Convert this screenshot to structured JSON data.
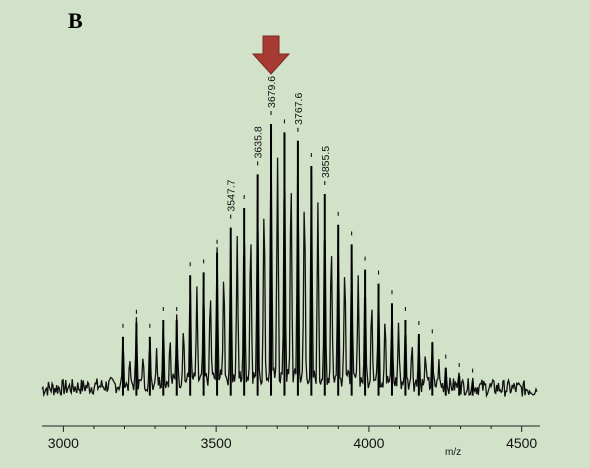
{
  "panel": {
    "letter": "B"
  },
  "chart_data": {
    "type": "line",
    "title": "",
    "xlabel": "m/z",
    "ylabel": "",
    "xlim": [
      2930,
      4560
    ],
    "ylim": [
      0,
      1.0
    ],
    "x_ticks": [
      3000,
      3500,
      4000,
      4500
    ],
    "grid": false,
    "highlight_arrow": {
      "at_x": 3679.6,
      "color": "#a73a33"
    },
    "peak_labels": [
      "3547.7",
      "3635.8",
      "3679.6",
      "3767.6",
      "3855.5"
    ],
    "peaks": [
      {
        "x": 3195,
        "y": 0.24
      },
      {
        "x": 3239,
        "y": 0.29
      },
      {
        "x": 3283,
        "y": 0.24
      },
      {
        "x": 3327,
        "y": 0.3
      },
      {
        "x": 3371,
        "y": 0.3
      },
      {
        "x": 3415,
        "y": 0.46
      },
      {
        "x": 3459,
        "y": 0.47
      },
      {
        "x": 3503,
        "y": 0.54
      },
      {
        "x": 3547.7,
        "y": 0.63
      },
      {
        "x": 3591.7,
        "y": 0.7
      },
      {
        "x": 3635.8,
        "y": 0.82
      },
      {
        "x": 3679.6,
        "y": 1.0
      },
      {
        "x": 3723.6,
        "y": 0.97
      },
      {
        "x": 3767.6,
        "y": 0.94
      },
      {
        "x": 3811.6,
        "y": 0.85
      },
      {
        "x": 3855.5,
        "y": 0.75
      },
      {
        "x": 3899.5,
        "y": 0.64
      },
      {
        "x": 3943.5,
        "y": 0.57
      },
      {
        "x": 3987.5,
        "y": 0.48
      },
      {
        "x": 4031.5,
        "y": 0.43
      },
      {
        "x": 4075.5,
        "y": 0.36
      },
      {
        "x": 4119.5,
        "y": 0.3
      },
      {
        "x": 4163.5,
        "y": 0.25
      },
      {
        "x": 4207.5,
        "y": 0.22
      },
      {
        "x": 4251.5,
        "y": 0.13
      },
      {
        "x": 4295.5,
        "y": 0.1
      },
      {
        "x": 4339.5,
        "y": 0.08
      }
    ],
    "minor_peaks": [
      {
        "x": 3217,
        "y": 0.16
      },
      {
        "x": 3261,
        "y": 0.17
      },
      {
        "x": 3305,
        "y": 0.18
      },
      {
        "x": 3349,
        "y": 0.24
      },
      {
        "x": 3393,
        "y": 0.28
      },
      {
        "x": 3437,
        "y": 0.4
      },
      {
        "x": 3481,
        "y": 0.42
      },
      {
        "x": 3525,
        "y": 0.5
      },
      {
        "x": 3569,
        "y": 0.58
      },
      {
        "x": 3613,
        "y": 0.66
      },
      {
        "x": 3657,
        "y": 0.77
      },
      {
        "x": 3701,
        "y": 0.86
      },
      {
        "x": 3745,
        "y": 0.88
      },
      {
        "x": 3789,
        "y": 0.8
      },
      {
        "x": 3833,
        "y": 0.7
      },
      {
        "x": 3877,
        "y": 0.61
      },
      {
        "x": 3921,
        "y": 0.52
      },
      {
        "x": 3965,
        "y": 0.44
      },
      {
        "x": 4009,
        "y": 0.38
      },
      {
        "x": 4053,
        "y": 0.32
      },
      {
        "x": 4097,
        "y": 0.27
      },
      {
        "x": 4141,
        "y": 0.22
      },
      {
        "x": 4185,
        "y": 0.18
      },
      {
        "x": 4229,
        "y": 0.14
      }
    ]
  }
}
